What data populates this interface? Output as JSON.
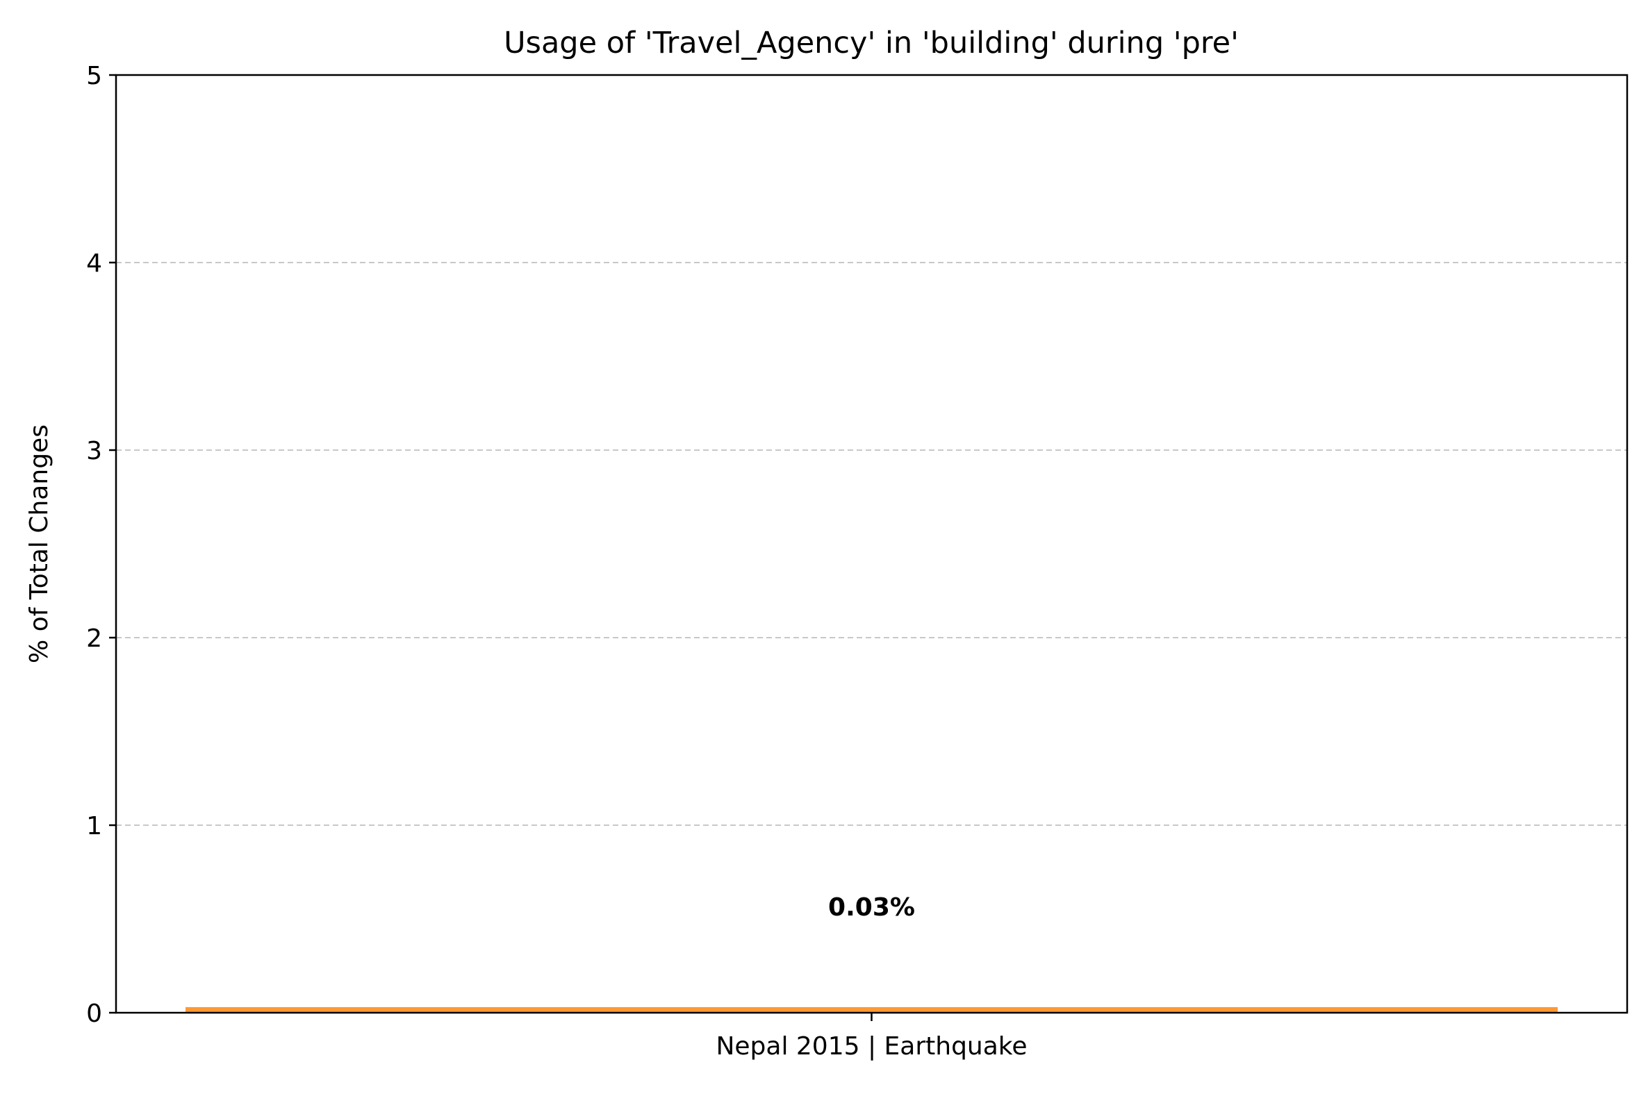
{
  "chart_data": {
    "type": "bar",
    "title": "Usage of 'Travel_Agency' in 'building' during 'pre'",
    "xlabel": "",
    "ylabel": "% of Total Changes",
    "categories": [
      "Nepal 2015 | Earthquake"
    ],
    "values": [
      0.03
    ],
    "data_labels": [
      "0.03%"
    ],
    "ylim": [
      0,
      5
    ],
    "yticks": [
      "0",
      "1",
      "2",
      "3",
      "4",
      "5"
    ],
    "grid": "y-dashed",
    "bar_color": "#ff9933",
    "grid_color": "#c8c8c8"
  }
}
